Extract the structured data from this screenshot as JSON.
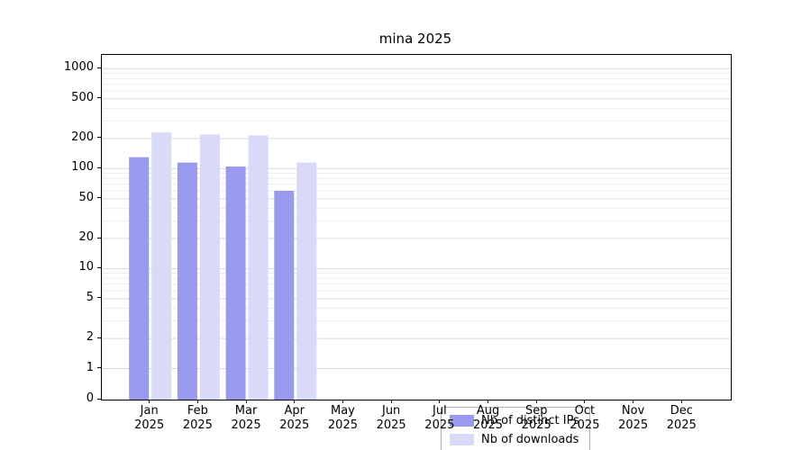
{
  "chart_data": {
    "type": "bar",
    "title": "mina 2025",
    "categories": [
      "Jan",
      "Feb",
      "Mar",
      "Apr",
      "May",
      "Jun",
      "Jul",
      "Aug",
      "Sep",
      "Oct",
      "Nov",
      "Dec"
    ],
    "year_label": "2025",
    "yscale": "symlog",
    "yticks": [
      0,
      1,
      2,
      5,
      10,
      20,
      50,
      100,
      200,
      500,
      1000
    ],
    "ylim": [
      0,
      1300
    ],
    "grid": "horizontal major and minor, light gray",
    "legend_position": "lower center inside axes",
    "series": [
      {
        "name": "Nb of distinct IPs",
        "color": "#9999ee",
        "values": [
          130,
          115,
          105,
          60,
          0,
          0,
          0,
          0,
          0,
          0,
          0,
          0
        ]
      },
      {
        "name": "Nb of downloads",
        "color": "#d9d9f8",
        "values": [
          230,
          220,
          215,
          115,
          0,
          0,
          0,
          0,
          0,
          0,
          0,
          0
        ]
      }
    ]
  }
}
